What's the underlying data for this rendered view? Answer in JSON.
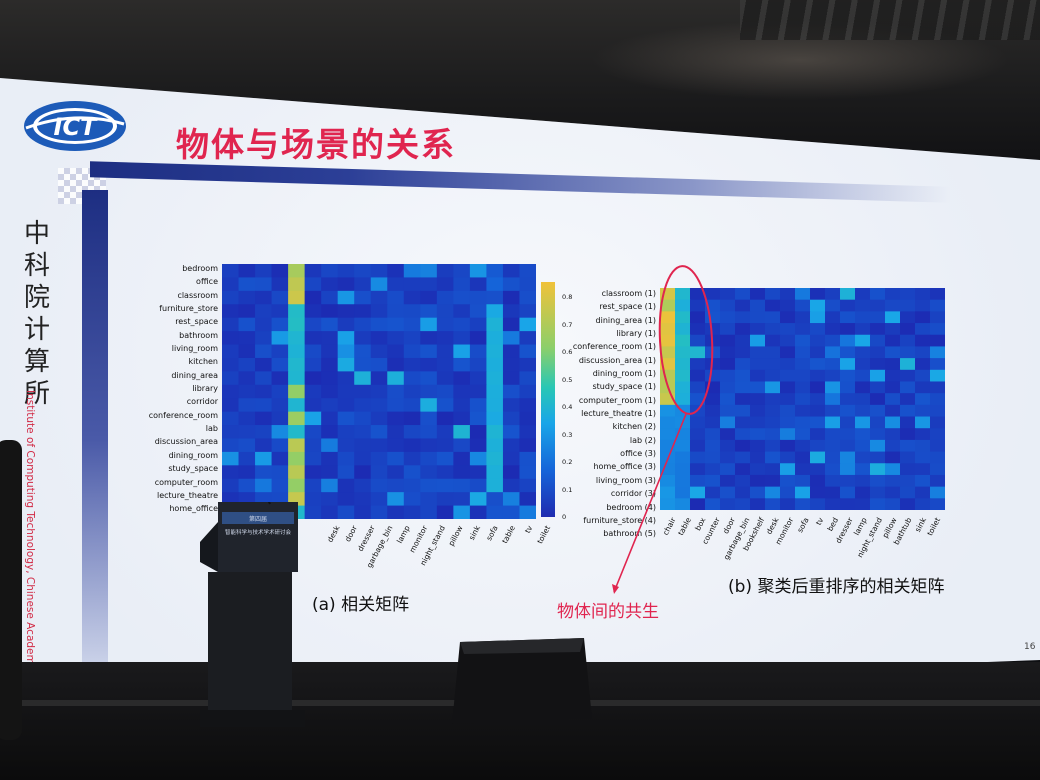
{
  "slide": {
    "title": "物体与场景的关系",
    "logo_text": "ICT",
    "institute_cn": "中科院计算所",
    "institute_en": "Institute of Computing Technology, Chinese Academy of Sciences",
    "page_number": "16",
    "annotation": "物体间的共生"
  },
  "colors": {
    "title": "#e0254f",
    "accent_bar": "#1d2e82",
    "matrix_background": "#1c2bb3",
    "highlight": "#f0c23a"
  },
  "matrix_a": {
    "caption": "(a) 相关矩阵",
    "rows": [
      "bedroom",
      "office",
      "classroom",
      "furniture_store",
      "rest_space",
      "bathroom",
      "living_room",
      "kitchen",
      "dining_area",
      "library",
      "corridor",
      "conference_room",
      "lab",
      "discussion_area",
      "dining_room",
      "study_space",
      "computer_room",
      "lecture_theatre",
      "home_office"
    ],
    "columns": [
      "desk",
      "door",
      "dresser",
      "garbage_bin",
      "lamp",
      "monitor",
      "night_stand",
      "pillow",
      "sink",
      "sofa",
      "table",
      "tv",
      "toilet"
    ]
  },
  "colorbar": {
    "ticks": [
      "0",
      "0.1",
      "0.2",
      "0.3",
      "0.4",
      "0.5",
      "0.6",
      "0.7",
      "0.8"
    ]
  },
  "matrix_b": {
    "caption": "(b) 聚类后重排序的相关矩阵",
    "rows": [
      "classroom (1)",
      "rest_space (1)",
      "dining_area (1)",
      "library (1)",
      "conference_room (1)",
      "discussion_area (1)",
      "dining_room (1)",
      "study_space (1)",
      "computer_room (1)",
      "lecture_theatre (1)",
      "kitchen (2)",
      "lab (2)",
      "office (3)",
      "home_office (3)",
      "living_room (3)",
      "corridor (3)",
      "bedroom (4)",
      "furniture_store (4)",
      "bathroom (5)"
    ],
    "columns": [
      "chair",
      "table",
      "box",
      "counter",
      "door",
      "garbage_bin",
      "bookshelf",
      "desk",
      "monitor",
      "sofa",
      "tv",
      "bed",
      "dresser",
      "lamp",
      "night_stand",
      "pillow",
      "bathtub",
      "sink",
      "toilet"
    ]
  },
  "podium": {
    "banner_line1": "第四届",
    "banner_line2": "智能科学与技术学术研讨会"
  }
}
